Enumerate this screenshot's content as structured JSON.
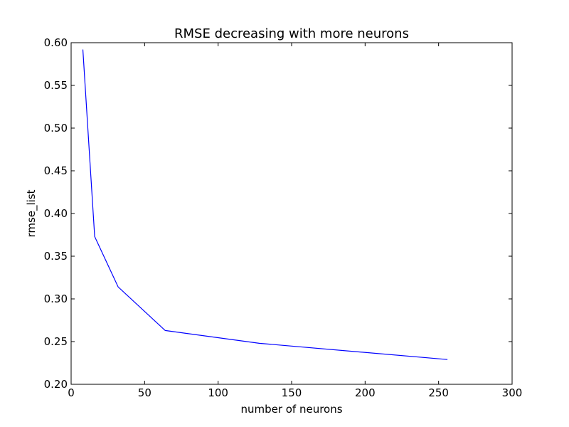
{
  "chart_data": {
    "type": "line",
    "title": "RMSE decreasing with more neurons",
    "xlabel": "number of neurons",
    "ylabel": "rmse_list",
    "xlim": [
      0,
      300
    ],
    "ylim": [
      0.2,
      0.6
    ],
    "xticks": [
      "0",
      "50",
      "100",
      "150",
      "200",
      "250",
      "300"
    ],
    "yticks": [
      "0.20",
      "0.25",
      "0.30",
      "0.35",
      "0.40",
      "0.45",
      "0.50",
      "0.55",
      "0.60"
    ],
    "grid": false,
    "series": [
      {
        "x": [
          8,
          16,
          32,
          64,
          128,
          256
        ],
        "y": [
          0.592,
          0.373,
          0.314,
          0.263,
          0.248,
          0.229
        ],
        "color": "#0000ff"
      }
    ]
  }
}
